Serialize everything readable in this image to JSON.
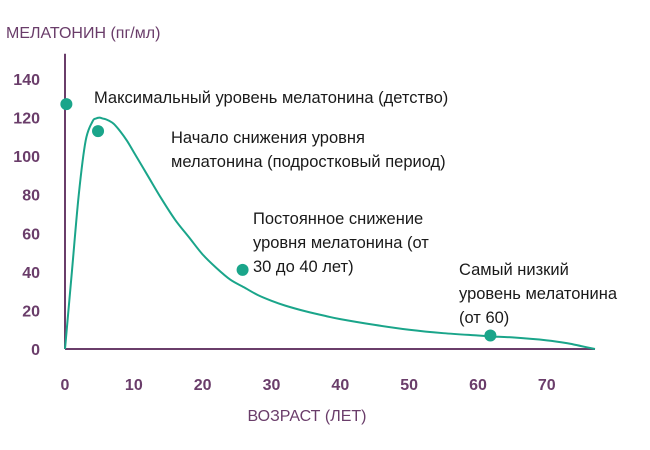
{
  "chart_data": {
    "type": "line",
    "title": "",
    "ylabel": "МЕЛАТОНИН (пг/мл)",
    "xlabel": "ВОЗРАСТ (ЛЕТ)",
    "xlim": [
      0,
      77
    ],
    "ylim": [
      0,
      150
    ],
    "x_ticks": [
      0,
      10,
      20,
      30,
      40,
      50,
      60,
      70
    ],
    "y_ticks": [
      0,
      20,
      40,
      60,
      80,
      100,
      120,
      140
    ],
    "grid": false,
    "line_color": "#1aa58a",
    "axis_color": "#6a3d6a",
    "series": [
      {
        "x": [
          0,
          1,
          2,
          3,
          4,
          4.5,
          5,
          5.5,
          6,
          7,
          8,
          9,
          10,
          12,
          14,
          16,
          18,
          20,
          22,
          24,
          26,
          28,
          30,
          32,
          35,
          38,
          40,
          45,
          50,
          55,
          60,
          62,
          65,
          70,
          73,
          75,
          77
        ],
        "y": [
          0,
          40,
          80,
          108,
          118,
          119.5,
          120,
          119.5,
          119,
          117,
          113,
          108,
          102,
          90,
          78,
          67,
          58,
          49,
          42,
          36,
          32,
          28,
          25,
          22.5,
          19.5,
          17,
          15.5,
          12.5,
          10,
          8.2,
          7,
          6.5,
          6,
          4.5,
          3,
          1.5,
          0
        ]
      }
    ],
    "points": [
      {
        "x": 0.2,
        "y": 127,
        "label_lines": [
          "Максимальный уровень мелатонина (детство)"
        ]
      },
      {
        "x": 4.8,
        "y": 113,
        "label_lines": [
          "Начало снижения уровня",
          "мелатонина (подростковый период)"
        ]
      },
      {
        "x": 25.8,
        "y": 41,
        "label_lines": [
          "Постоянное снижение",
          "уровня мелатонина (от",
          "30 до 40 лет)"
        ]
      },
      {
        "x": 61.8,
        "y": 7,
        "label_lines": [
          "Самый низкий",
          "уровень мелатонина",
          "(от 60)"
        ]
      }
    ]
  }
}
